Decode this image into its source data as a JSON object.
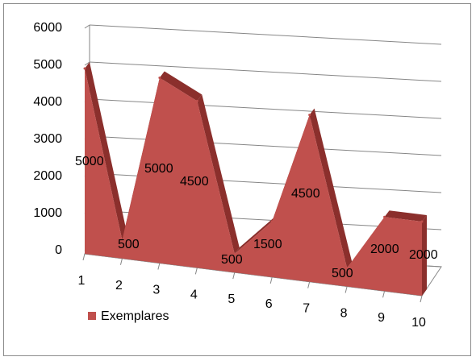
{
  "chart_data": {
    "type": "area",
    "x": [
      "1",
      "2",
      "3",
      "4",
      "5",
      "6",
      "7",
      "8",
      "9",
      "10"
    ],
    "series": [
      {
        "name": "Exemplares",
        "values": [
          5000,
          500,
          5000,
          4500,
          500,
          1500,
          4500,
          500,
          2000,
          2000
        ],
        "data_labels": [
          "5000",
          "500",
          "5000",
          "4500",
          "500",
          "1500",
          "4500",
          "500",
          "2000",
          "2000"
        ],
        "color": "#c0504d",
        "dark_color": "#8b2f2c"
      }
    ],
    "y_ticks": [
      "0",
      "1000",
      "2000",
      "3000",
      "4000",
      "5000",
      "6000"
    ],
    "ylim": [
      0,
      6000
    ],
    "grid": true,
    "legend_position": "bottom-left",
    "style": "3d"
  }
}
